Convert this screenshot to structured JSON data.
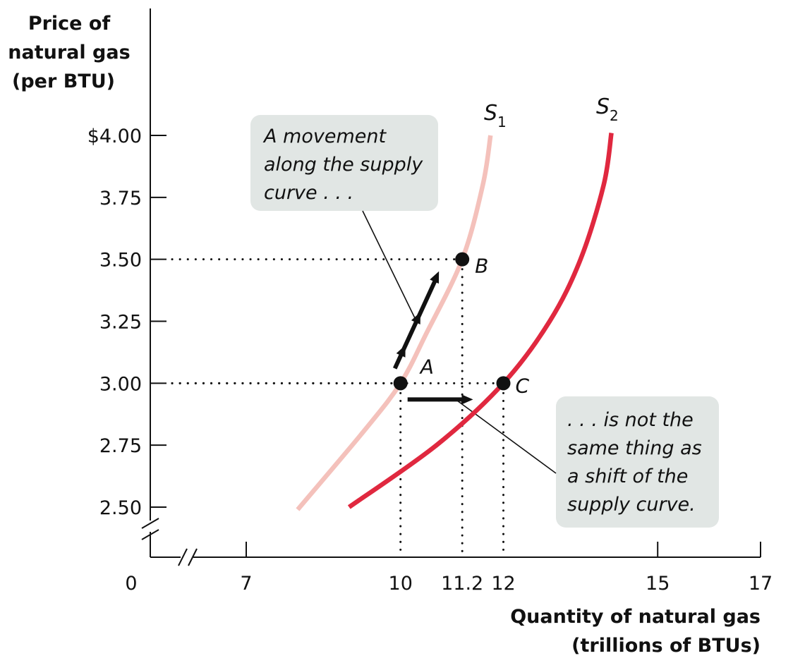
{
  "chart_data": {
    "type": "line",
    "ylabel": [
      "Price of",
      "natural gas",
      "(per BTU)"
    ],
    "xlabel": [
      "Quantity of natural gas",
      "(trillions of BTUs)"
    ],
    "origin_label": "0",
    "x_ticks": [
      {
        "value": 7,
        "label": "7"
      },
      {
        "value": 10,
        "label": "10"
      },
      {
        "value": 11.2,
        "label": "11.2"
      },
      {
        "value": 12,
        "label": "12"
      },
      {
        "value": 15,
        "label": "15"
      },
      {
        "value": 17,
        "label": "17"
      }
    ],
    "y_ticks": [
      {
        "value": 2.5,
        "label": "2.50"
      },
      {
        "value": 2.75,
        "label": "2.75"
      },
      {
        "value": 3.0,
        "label": "3.00"
      },
      {
        "value": 3.25,
        "label": "3.25"
      },
      {
        "value": 3.5,
        "label": "3.50"
      },
      {
        "value": 3.75,
        "label": "3.75"
      },
      {
        "value": 4.0,
        "label": "$4.00"
      }
    ],
    "xlim": [
      5.2,
      17
    ],
    "ylim": [
      2.35,
      4.0
    ],
    "axis_breaks": {
      "x": true,
      "y": true
    },
    "series": [
      {
        "name": "S",
        "sub": "1",
        "color": "#f4c1bb",
        "points": [
          [
            8.0,
            2.49
          ],
          [
            9.3,
            2.81
          ],
          [
            10.0,
            3.0
          ],
          [
            10.5,
            3.2
          ],
          [
            11.2,
            3.5
          ],
          [
            11.6,
            3.8
          ],
          [
            11.75,
            4.0
          ]
        ]
      },
      {
        "name": "S",
        "sub": "2",
        "color": "#e0283f",
        "points": [
          [
            9.0,
            2.5
          ],
          [
            10.7,
            2.75
          ],
          [
            12.0,
            3.0
          ],
          [
            12.9,
            3.25
          ],
          [
            13.5,
            3.5
          ],
          [
            13.95,
            3.8
          ],
          [
            14.1,
            4.01
          ]
        ]
      }
    ],
    "points": [
      {
        "label": "A",
        "x": 10,
        "y": 3.0
      },
      {
        "label": "B",
        "x": 11.2,
        "y": 3.5
      },
      {
        "label": "C",
        "x": 12,
        "y": 3.0
      }
    ],
    "annotations": [
      [
        "A movement",
        "along the supply",
        "curve . . ."
      ],
      [
        ". . . is not the",
        "same thing as",
        "a shift of the",
        "supply curve."
      ]
    ]
  }
}
